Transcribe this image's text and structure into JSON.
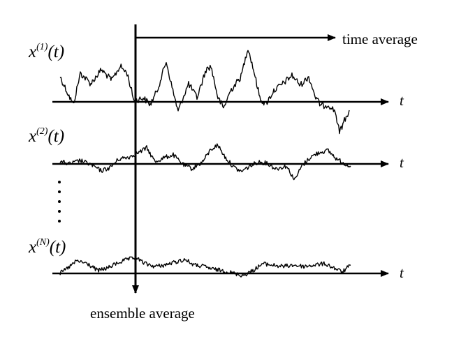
{
  "labels": {
    "time_average": "time average",
    "ensemble_average": "ensemble average",
    "axis_variable": "t"
  },
  "series": [
    {
      "base": "x",
      "superscript": "(1)",
      "arg": "(t)"
    },
    {
      "base": "x",
      "superscript": "(2)",
      "arg": "(t)"
    },
    {
      "base": "x",
      "superscript": "(N)",
      "arg": "(t)"
    }
  ],
  "colors": {
    "ink": "#000000",
    "background": "#ffffff"
  }
}
